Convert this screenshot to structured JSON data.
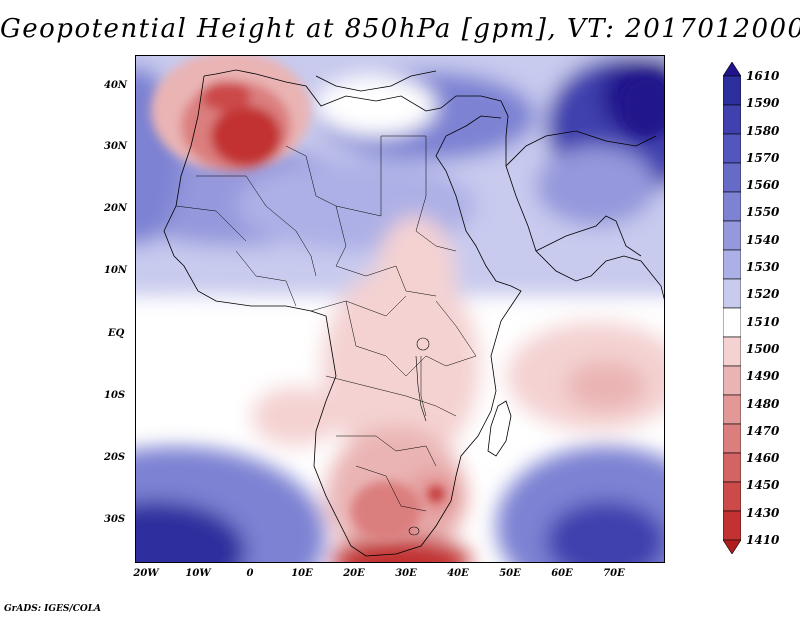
{
  "title": "Geopotential Height at 850hPa [gpm], VT: 2017012000",
  "footer": "GrADS: IGES/COLA",
  "axes": {
    "lat_labels": [
      "40N",
      "30N",
      "20N",
      "10N",
      "EQ",
      "10S",
      "20S",
      "30S"
    ],
    "lon_labels": [
      "20W",
      "10W",
      "0",
      "10E",
      "20E",
      "30E",
      "40E",
      "50E",
      "60E",
      "70E"
    ]
  },
  "colorbar": {
    "levels": [
      "1610",
      "1590",
      "1580",
      "1570",
      "1560",
      "1550",
      "1540",
      "1530",
      "1520",
      "1510",
      "1500",
      "1490",
      "1480",
      "1470",
      "1460",
      "1450",
      "1430",
      "1410"
    ],
    "colors": [
      "#20148c",
      "#2e2f9e",
      "#4041ae",
      "#5356bd",
      "#676bc8",
      "#7d82d3",
      "#9598dc",
      "#adb0e6",
      "#c8caee",
      "#ffffff",
      "#f4d2d2",
      "#eab4b4",
      "#e39898",
      "#db7e7e",
      "#d46464",
      "#cc4a4a",
      "#c23232",
      "#b01c1c"
    ]
  },
  "colors": {
    "blue_deep": "#2a1f8f",
    "blue_mid": "#6e72cc",
    "blue_light": "#c8caee",
    "red_light": "#f2c8c8",
    "red_mid": "#e08a8a",
    "red_deep": "#c0282a"
  }
}
